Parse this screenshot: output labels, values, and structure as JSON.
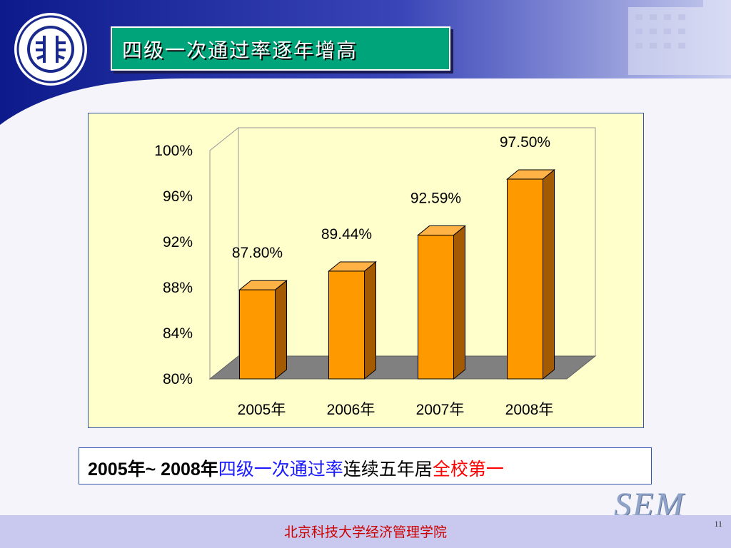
{
  "slide": {
    "title": "四级一次通过率逐年增高",
    "footer_text": "北京科技大学经济管理学院",
    "page_number": "11",
    "brand_mark": "SEM"
  },
  "caption": {
    "part1": "2005年~ 2008年",
    "part2": "四级一次通过率",
    "part3": "连续五年居",
    "part4": "全校第一"
  },
  "colors": {
    "bar_front": "#ff9900",
    "bar_side": "#a35a00",
    "bar_top": "#ffb347",
    "caption_blue": "#1a1aff",
    "caption_red": "#ff0000",
    "title_bg": "#00a47a"
  },
  "chart_data": {
    "type": "bar",
    "categories": [
      "2005年",
      "2006年",
      "2007年",
      "2008年"
    ],
    "values": [
      87.8,
      89.44,
      92.59,
      97.5
    ],
    "data_labels": [
      "87.80%",
      "89.44%",
      "92.59%",
      "97.50%"
    ],
    "yticks": [
      "80%",
      "84%",
      "88%",
      "92%",
      "96%",
      "100%"
    ],
    "ylim": [
      80,
      100
    ],
    "style": "3d",
    "legend": "none"
  }
}
